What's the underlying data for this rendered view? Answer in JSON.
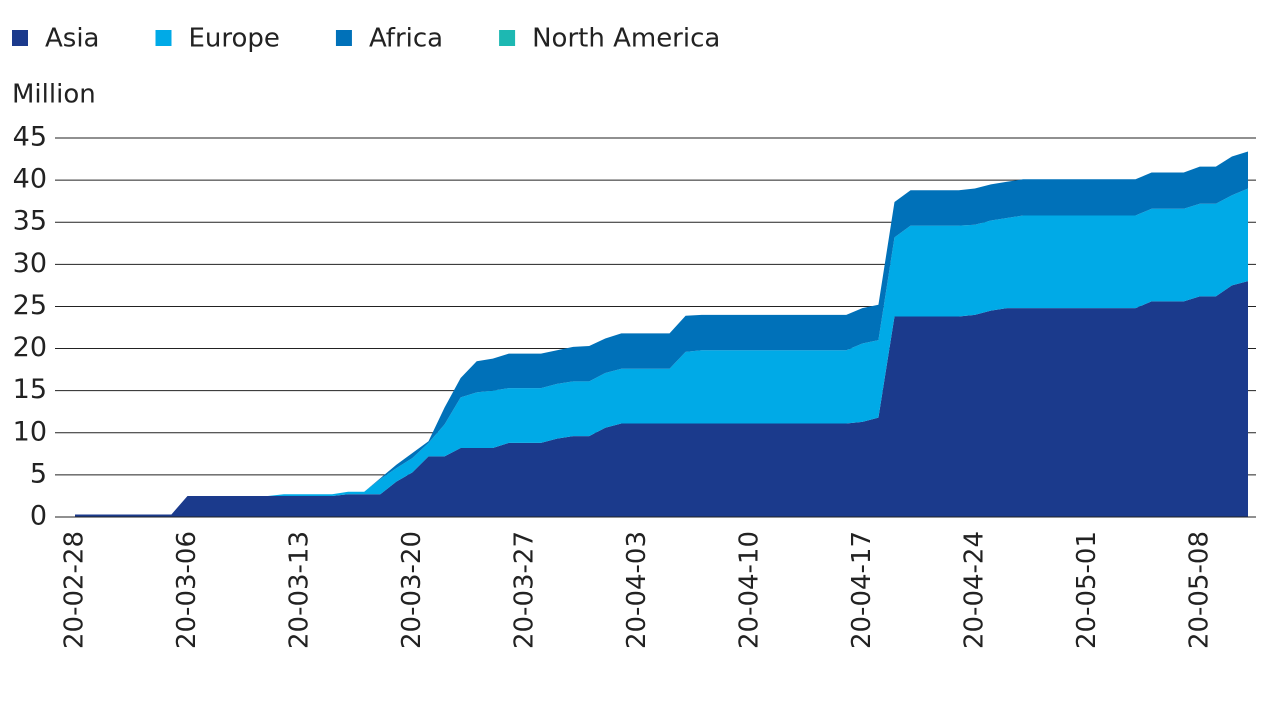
{
  "chart_data": {
    "type": "stacked_area",
    "y_label": "Million",
    "categories": [
      "20-02-28",
      null,
      null,
      null,
      null,
      null,
      null,
      "20-03-06",
      null,
      null,
      null,
      null,
      null,
      null,
      "20-03-13",
      null,
      null,
      null,
      null,
      null,
      null,
      "20-03-20",
      null,
      null,
      null,
      null,
      null,
      null,
      "20-03-27",
      null,
      null,
      null,
      null,
      null,
      null,
      "20-04-03",
      null,
      null,
      null,
      null,
      null,
      null,
      "20-04-10",
      null,
      null,
      null,
      null,
      null,
      null,
      "20-04-17",
      null,
      null,
      null,
      null,
      null,
      null,
      "20-04-24",
      null,
      null,
      null,
      null,
      null,
      null,
      "20-05-01",
      null,
      null,
      null,
      null,
      null,
      null,
      "20-05-08",
      null,
      null,
      null
    ],
    "series": [
      {
        "name": "Asia",
        "color": "#1b3a8c",
        "values": [
          0.3,
          0.3,
          0.3,
          0.3,
          0.3,
          0.3,
          0.3,
          2.5,
          2.5,
          2.5,
          2.5,
          2.5,
          2.5,
          2.5,
          2.5,
          2.5,
          2.5,
          2.7,
          2.7,
          2.7,
          4.2,
          5.3,
          7.2,
          7.2,
          8.2,
          8.2,
          8.2,
          8.8,
          8.8,
          8.8,
          9.3,
          9.6,
          9.6,
          10.6,
          11.1,
          11.1,
          11.1,
          11.1,
          11.1,
          11.1,
          11.1,
          11.1,
          11.1,
          11.1,
          11.1,
          11.1,
          11.1,
          11.1,
          11.1,
          11.3,
          11.8,
          23.8,
          23.8,
          23.8,
          23.8,
          23.8,
          24.0,
          24.5,
          24.8,
          24.8,
          24.8,
          24.8,
          24.8,
          24.8,
          24.8,
          24.8,
          24.8,
          25.6,
          25.6,
          25.6,
          26.2,
          26.2,
          27.5,
          28.0
        ]
      },
      {
        "name": "Europe",
        "color": "#00aae7",
        "values": [
          0,
          0,
          0,
          0,
          0,
          0,
          0,
          0,
          0,
          0,
          0,
          0,
          0,
          0.2,
          0.2,
          0.2,
          0.2,
          0.3,
          0.3,
          1.8,
          1.6,
          1.7,
          1.6,
          3.8,
          6.0,
          6.6,
          6.8,
          6.5,
          6.5,
          6.5,
          6.5,
          6.5,
          6.5,
          6.5,
          6.5,
          6.5,
          6.5,
          6.5,
          8.5,
          8.7,
          8.7,
          8.7,
          8.7,
          8.7,
          8.7,
          8.7,
          8.7,
          8.7,
          8.7,
          9.3,
          9.2,
          9.4,
          10.8,
          10.8,
          10.8,
          10.8,
          10.7,
          10.7,
          10.7,
          11.0,
          11.0,
          11.0,
          11.0,
          11.0,
          11.0,
          11.0,
          11.0,
          11.0,
          11.0,
          11.0,
          11.0,
          11.0,
          10.7,
          11.0
        ]
      },
      {
        "name": "Africa",
        "color": "#0071b9",
        "values": [
          0,
          0,
          0,
          0,
          0,
          0,
          0,
          0,
          0,
          0,
          0,
          0,
          0,
          0,
          0,
          0,
          0,
          0,
          0,
          0.1,
          0.4,
          0.6,
          0.2,
          2.0,
          2.3,
          3.7,
          3.8,
          4.1,
          4.1,
          4.1,
          4.0,
          4.1,
          4.2,
          4.1,
          4.2,
          4.2,
          4.2,
          4.2,
          4.3,
          4.2,
          4.2,
          4.2,
          4.2,
          4.2,
          4.2,
          4.2,
          4.2,
          4.2,
          4.2,
          4.2,
          4.2,
          4.2,
          4.2,
          4.2,
          4.2,
          4.2,
          4.3,
          4.3,
          4.3,
          4.3,
          4.3,
          4.3,
          4.3,
          4.3,
          4.3,
          4.3,
          4.3,
          4.3,
          4.3,
          4.3,
          4.4,
          4.4,
          4.6,
          4.4
        ]
      },
      {
        "name": "North America",
        "color": "#1db8b2",
        "values": [
          0,
          0,
          0,
          0,
          0,
          0,
          0,
          0,
          0,
          0,
          0,
          0,
          0,
          0,
          0,
          0,
          0,
          0,
          0,
          0,
          0,
          0,
          0,
          0,
          0,
          0,
          0,
          0,
          0,
          0,
          0,
          0,
          0,
          0,
          0,
          0,
          0,
          0,
          0,
          0,
          0,
          0,
          0,
          0,
          0,
          0,
          0,
          0,
          0,
          0,
          0,
          0,
          0,
          0,
          0,
          0,
          0,
          0,
          0,
          0,
          0,
          0,
          0,
          0,
          0,
          0,
          0,
          0,
          0,
          0,
          0,
          0,
          0,
          0
        ]
      }
    ],
    "ylim": [
      0,
      45
    ],
    "yticks": [
      0,
      5,
      10,
      15,
      20,
      25,
      30,
      35,
      40,
      45
    ],
    "grid": true
  }
}
